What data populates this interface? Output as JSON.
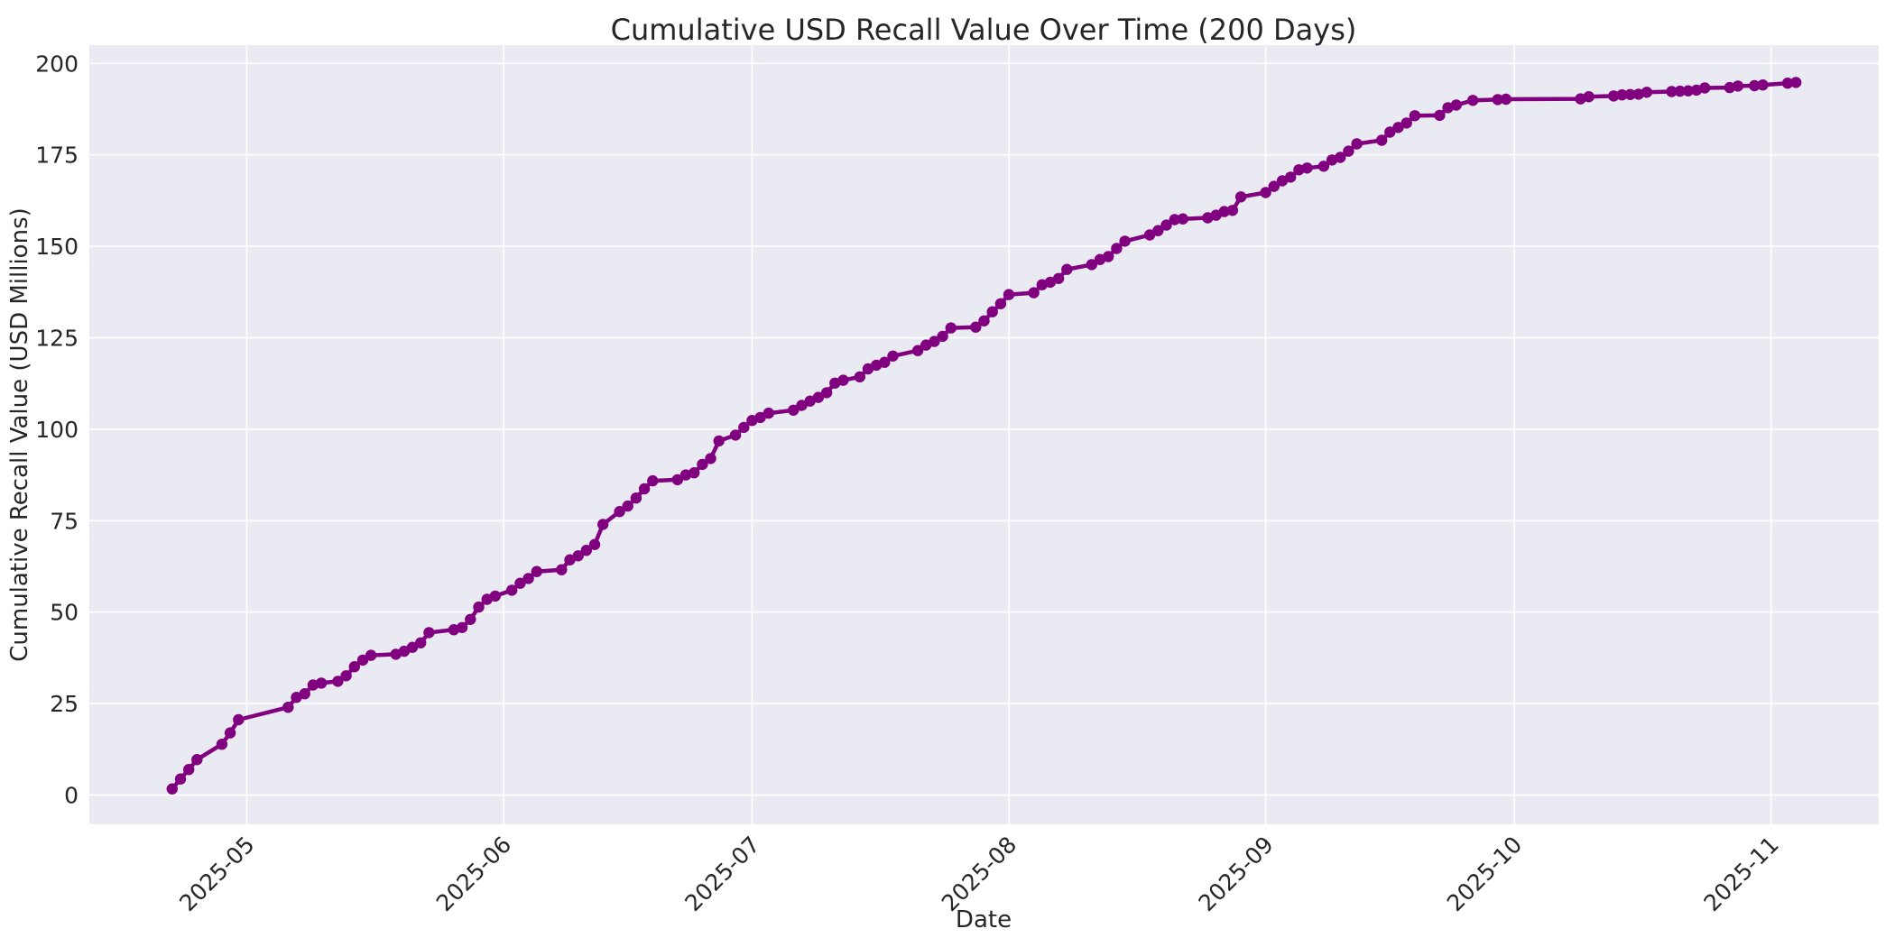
{
  "figure": {
    "background": "#ffffff",
    "text_color": "#262626"
  },
  "chart_data": {
    "type": "line",
    "title": "Cumulative USD Recall Value Over Time (200 Days)",
    "xlabel": "Date",
    "ylabel": "Cumulative Recall Value (USD Millions)",
    "legend": "none",
    "grid": true,
    "line_color": "#800080",
    "marker_color": "#800080",
    "axes_bg": "#eaeaf2",
    "grid_color": "#ffffff",
    "marker": "o",
    "x_domain": [
      "2025-04-12",
      "2025-11-14"
    ],
    "ylim": [
      -8,
      205
    ],
    "x_ticks": [
      "2025-05",
      "2025-06",
      "2025-07",
      "2025-08",
      "2025-09",
      "2025-10",
      "2025-11"
    ],
    "y_ticks": [
      0,
      25,
      50,
      75,
      100,
      125,
      150,
      175,
      200
    ],
    "points": [
      [
        "2025-04-22",
        1.7
      ],
      [
        "2025-04-23",
        4.4
      ],
      [
        "2025-04-24",
        7.0
      ],
      [
        "2025-04-25",
        9.7
      ],
      [
        "2025-04-28",
        13.9
      ],
      [
        "2025-04-29",
        17.0
      ],
      [
        "2025-04-30",
        20.6
      ],
      [
        "2025-05-06",
        24.0
      ],
      [
        "2025-05-07",
        26.7
      ],
      [
        "2025-05-08",
        27.7
      ],
      [
        "2025-05-09",
        30.1
      ],
      [
        "2025-05-10",
        30.6
      ],
      [
        "2025-05-12",
        31.1
      ],
      [
        "2025-05-13",
        32.6
      ],
      [
        "2025-05-14",
        35.1
      ],
      [
        "2025-05-15",
        36.9
      ],
      [
        "2025-05-16",
        38.2
      ],
      [
        "2025-05-19",
        38.5
      ],
      [
        "2025-05-20",
        39.3
      ],
      [
        "2025-05-21",
        40.4
      ],
      [
        "2025-05-22",
        41.6
      ],
      [
        "2025-05-23",
        44.4
      ],
      [
        "2025-05-26",
        45.2
      ],
      [
        "2025-05-27",
        45.8
      ],
      [
        "2025-05-28",
        48.0
      ],
      [
        "2025-05-29",
        51.4
      ],
      [
        "2025-05-30",
        53.5
      ],
      [
        "2025-05-31",
        54.4
      ],
      [
        "2025-06-02",
        56.0
      ],
      [
        "2025-06-03",
        57.9
      ],
      [
        "2025-06-04",
        59.2
      ],
      [
        "2025-06-05",
        61.1
      ],
      [
        "2025-06-08",
        61.6
      ],
      [
        "2025-06-09",
        64.3
      ],
      [
        "2025-06-10",
        65.4
      ],
      [
        "2025-06-11",
        66.9
      ],
      [
        "2025-06-12",
        68.5
      ],
      [
        "2025-06-13",
        74.0
      ],
      [
        "2025-06-15",
        77.5
      ],
      [
        "2025-06-16",
        79.0
      ],
      [
        "2025-06-17",
        81.2
      ],
      [
        "2025-06-18",
        83.7
      ],
      [
        "2025-06-19",
        85.9
      ],
      [
        "2025-06-22",
        86.2
      ],
      [
        "2025-06-23",
        87.5
      ],
      [
        "2025-06-24",
        88.1
      ],
      [
        "2025-06-25",
        90.4
      ],
      [
        "2025-06-26",
        92.0
      ],
      [
        "2025-06-27",
        96.8
      ],
      [
        "2025-06-29",
        98.4
      ],
      [
        "2025-06-30",
        100.5
      ],
      [
        "2025-07-01",
        102.4
      ],
      [
        "2025-07-02",
        103.2
      ],
      [
        "2025-07-03",
        104.4
      ],
      [
        "2025-07-06",
        105.2
      ],
      [
        "2025-07-07",
        106.5
      ],
      [
        "2025-07-08",
        107.7
      ],
      [
        "2025-07-09",
        108.7
      ],
      [
        "2025-07-10",
        110.0
      ],
      [
        "2025-07-11",
        112.6
      ],
      [
        "2025-07-12",
        113.4
      ],
      [
        "2025-07-14",
        114.3
      ],
      [
        "2025-07-15",
        116.5
      ],
      [
        "2025-07-16",
        117.5
      ],
      [
        "2025-07-17",
        118.3
      ],
      [
        "2025-07-18",
        120.0
      ],
      [
        "2025-07-21",
        121.5
      ],
      [
        "2025-07-22",
        123.0
      ],
      [
        "2025-07-23",
        124.0
      ],
      [
        "2025-07-24",
        125.4
      ],
      [
        "2025-07-25",
        127.7
      ],
      [
        "2025-07-28",
        127.9
      ],
      [
        "2025-07-29",
        129.6
      ],
      [
        "2025-07-30",
        132.1
      ],
      [
        "2025-07-31",
        134.3
      ],
      [
        "2025-08-01",
        136.8
      ],
      [
        "2025-08-04",
        137.3
      ],
      [
        "2025-08-05",
        139.5
      ],
      [
        "2025-08-06",
        140.2
      ],
      [
        "2025-08-07",
        141.2
      ],
      [
        "2025-08-08",
        143.7
      ],
      [
        "2025-08-11",
        145.0
      ],
      [
        "2025-08-12",
        146.4
      ],
      [
        "2025-08-13",
        147.2
      ],
      [
        "2025-08-14",
        149.4
      ],
      [
        "2025-08-15",
        151.4
      ],
      [
        "2025-08-18",
        153.1
      ],
      [
        "2025-08-19",
        154.3
      ],
      [
        "2025-08-20",
        155.8
      ],
      [
        "2025-08-21",
        157.3
      ],
      [
        "2025-08-22",
        157.5
      ],
      [
        "2025-08-25",
        157.8
      ],
      [
        "2025-08-26",
        158.5
      ],
      [
        "2025-08-27",
        159.5
      ],
      [
        "2025-08-28",
        159.8
      ],
      [
        "2025-08-29",
        163.5
      ],
      [
        "2025-09-01",
        164.7
      ],
      [
        "2025-09-02",
        166.4
      ],
      [
        "2025-09-03",
        167.9
      ],
      [
        "2025-09-04",
        168.9
      ],
      [
        "2025-09-05",
        170.9
      ],
      [
        "2025-09-06",
        171.4
      ],
      [
        "2025-09-08",
        171.9
      ],
      [
        "2025-09-09",
        173.6
      ],
      [
        "2025-09-10",
        174.3
      ],
      [
        "2025-09-11",
        176.0
      ],
      [
        "2025-09-12",
        178.0
      ],
      [
        "2025-09-15",
        179.0
      ],
      [
        "2025-09-16",
        181.2
      ],
      [
        "2025-09-17",
        182.5
      ],
      [
        "2025-09-18",
        183.7
      ],
      [
        "2025-09-19",
        185.7
      ],
      [
        "2025-09-22",
        185.8
      ],
      [
        "2025-09-23",
        187.9
      ],
      [
        "2025-09-24",
        188.6
      ],
      [
        "2025-09-26",
        189.9
      ],
      [
        "2025-09-29",
        190.1
      ],
      [
        "2025-09-30",
        190.2
      ],
      [
        "2025-10-09",
        190.3
      ],
      [
        "2025-10-10",
        190.9
      ],
      [
        "2025-10-13",
        191.1
      ],
      [
        "2025-10-14",
        191.4
      ],
      [
        "2025-10-15",
        191.5
      ],
      [
        "2025-10-16",
        191.6
      ],
      [
        "2025-10-17",
        192.1
      ],
      [
        "2025-10-20",
        192.3
      ],
      [
        "2025-10-21",
        192.4
      ],
      [
        "2025-10-22",
        192.5
      ],
      [
        "2025-10-23",
        192.7
      ],
      [
        "2025-10-24",
        193.3
      ],
      [
        "2025-10-27",
        193.4
      ],
      [
        "2025-10-28",
        193.8
      ],
      [
        "2025-10-30",
        193.9
      ],
      [
        "2025-10-31",
        194.1
      ],
      [
        "2025-11-03",
        194.6
      ],
      [
        "2025-11-04",
        194.8
      ]
    ]
  }
}
